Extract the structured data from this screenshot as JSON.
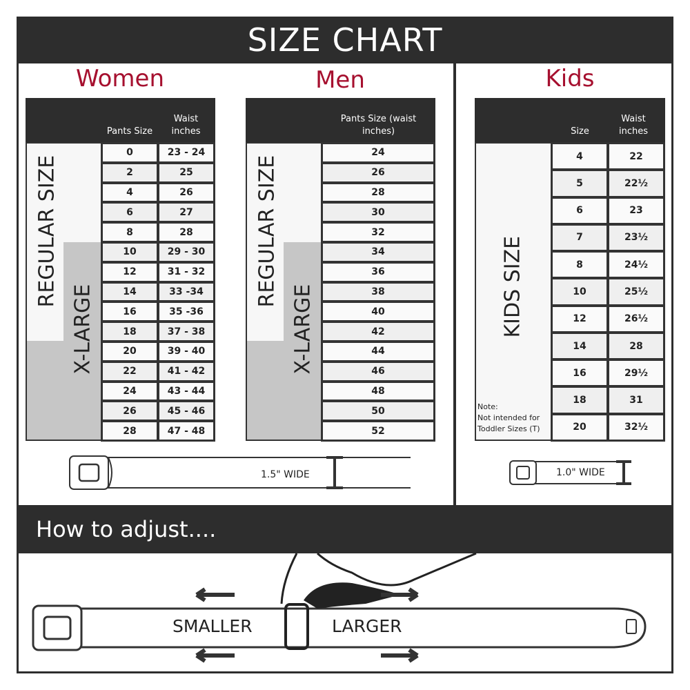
{
  "title": "SIZE CHART",
  "women": {
    "title": "Women",
    "col1": "Pants Size",
    "col2": "Waist inches",
    "regular_label": "REGULAR SIZE",
    "xlarge_label": "X-LARGE",
    "rows": [
      [
        "0",
        "23 - 24"
      ],
      [
        "2",
        "25"
      ],
      [
        "4",
        "26"
      ],
      [
        "6",
        "27"
      ],
      [
        "8",
        "28"
      ],
      [
        "10",
        "29 - 30"
      ],
      [
        "12",
        "31 - 32"
      ],
      [
        "14",
        "33 -34"
      ],
      [
        "16",
        "35 -36"
      ],
      [
        "18",
        "37 - 38"
      ],
      [
        "20",
        "39 - 40"
      ],
      [
        "22",
        "41 - 42"
      ],
      [
        "24",
        "43 - 44"
      ],
      [
        "26",
        "45 - 46"
      ],
      [
        "28",
        "47 - 48"
      ]
    ],
    "belt_label": "1.5\" WIDE"
  },
  "men": {
    "title": "Men",
    "col1": "Pants Size (waist inches)",
    "regular_label": "REGULAR SIZE",
    "xlarge_label": "X-LARGE",
    "rows": [
      "24",
      "26",
      "28",
      "30",
      "32",
      "34",
      "36",
      "38",
      "40",
      "42",
      "44",
      "46",
      "48",
      "50",
      "52"
    ]
  },
  "kids": {
    "title": "Kids",
    "col1": "Size",
    "col2": "Waist inches",
    "label": "KIDS SIZE",
    "note_title": "Note:",
    "note_text": "Not intended for Toddler Sizes (T)",
    "rows": [
      [
        "4",
        "22"
      ],
      [
        "5",
        "22½"
      ],
      [
        "6",
        "23"
      ],
      [
        "7",
        "23½"
      ],
      [
        "8",
        "24½"
      ],
      [
        "10",
        "25½"
      ],
      [
        "12",
        "26½"
      ],
      [
        "14",
        "28"
      ],
      [
        "16",
        "29½"
      ],
      [
        "18",
        "31"
      ],
      [
        "20",
        "32½"
      ]
    ],
    "belt_label": "1.0\" WIDE"
  },
  "adjust": {
    "title": "How to adjust....",
    "smaller": "SMALLER",
    "larger": "LARGER"
  },
  "colors": {
    "accent": "#a6102f",
    "dark": "#2d2d2d",
    "xlarge_fill": "#c6c6c6"
  }
}
